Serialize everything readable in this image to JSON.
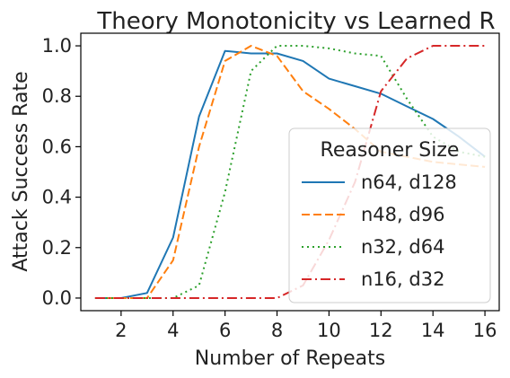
{
  "chart_data": {
    "type": "line",
    "title": "Theory Monotonicity vs Learned R",
    "xlabel": "Number of Repeats",
    "ylabel": "Attack Success Rate",
    "xlim": [
      0.45,
      16.55
    ],
    "ylim": [
      -0.05,
      1.05
    ],
    "xticks": [
      2,
      4,
      6,
      8,
      10,
      12,
      14,
      16
    ],
    "yticks": [
      0.0,
      0.2,
      0.4,
      0.6,
      0.8,
      1.0
    ],
    "xtick_labels": [
      "2",
      "4",
      "6",
      "8",
      "10",
      "12",
      "14",
      "16"
    ],
    "ytick_labels": [
      "0.0",
      "0.2",
      "0.4",
      "0.6",
      "0.8",
      "1.0"
    ],
    "grid": false,
    "x": [
      1,
      2,
      3,
      4,
      5,
      6,
      7,
      8,
      9,
      10,
      11,
      12,
      13,
      14,
      15,
      16
    ],
    "legend": {
      "title": "Reasoner Size",
      "placement": "center-right"
    },
    "series": [
      {
        "name": "n64, d128",
        "color": "#1f77b4",
        "dash": "solid",
        "values": [
          0.0,
          0.0,
          0.02,
          0.24,
          0.72,
          0.98,
          0.97,
          0.97,
          0.94,
          0.87,
          0.84,
          0.81,
          0.76,
          0.71,
          0.64,
          0.56
        ]
      },
      {
        "name": "n48, d96",
        "color": "#ff7f0e",
        "dash": "dashed",
        "values": [
          0.0,
          0.0,
          0.0,
          0.15,
          0.6,
          0.94,
          1.0,
          0.96,
          0.82,
          0.75,
          0.67,
          0.58,
          0.56,
          0.54,
          0.53,
          0.52
        ]
      },
      {
        "name": "n32, d64",
        "color": "#2ca02c",
        "dash": "dotted",
        "values": [
          0.0,
          0.0,
          0.0,
          0.0,
          0.05,
          0.42,
          0.9,
          1.0,
          1.0,
          0.99,
          0.97,
          0.96,
          0.79,
          0.64,
          0.58,
          0.56
        ]
      },
      {
        "name": "n16, d32",
        "color": "#d62728",
        "dash": "dashdot",
        "values": [
          0.0,
          0.0,
          0.0,
          0.0,
          0.0,
          0.0,
          0.0,
          0.0,
          0.05,
          0.23,
          0.46,
          0.82,
          0.95,
          1.0,
          1.0,
          1.0
        ]
      }
    ]
  }
}
